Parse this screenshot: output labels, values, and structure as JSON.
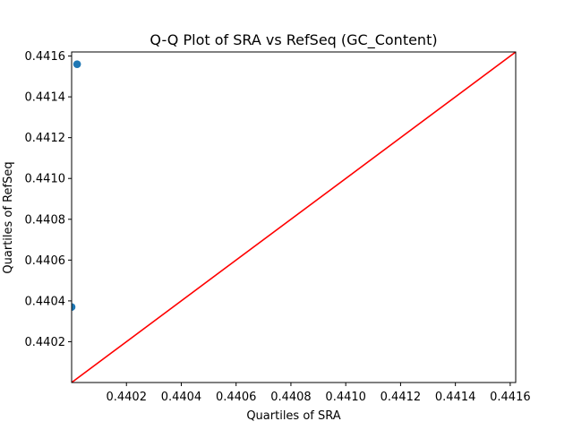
{
  "chart_data": {
    "type": "scatter",
    "title": "Q-Q Plot of SRA vs RefSeq (GC_Content)",
    "xlabel": "Quartiles of SRA",
    "ylabel": "Quartiles of RefSeq",
    "xlim": [
      0.44,
      0.44162
    ],
    "ylim": [
      0.44,
      0.44162
    ],
    "xticks": [
      0.4402,
      0.4404,
      0.4406,
      0.4408,
      0.441,
      0.4412,
      0.4414,
      0.4416
    ],
    "xtick_labels": [
      "0.4402",
      "0.4404",
      "0.4406",
      "0.4408",
      "0.4410",
      "0.4412",
      "0.4414",
      "0.4416"
    ],
    "yticks": [
      0.4402,
      0.4404,
      0.4406,
      0.4408,
      0.441,
      0.4412,
      0.4414,
      0.4416
    ],
    "ytick_labels": [
      "0.4402",
      "0.4404",
      "0.4406",
      "0.4408",
      "0.4410",
      "0.4412",
      "0.4414",
      "0.4416"
    ],
    "grid": false,
    "series": [
      {
        "type": "scatter",
        "color": "#1f77b4",
        "points": [
          {
            "x": 0.44,
            "y": 0.44037
          },
          {
            "x": 0.44002,
            "y": 0.44156
          }
        ]
      },
      {
        "type": "line",
        "color": "#ff0000",
        "points": [
          {
            "x": 0.44,
            "y": 0.44
          },
          {
            "x": 0.44162,
            "y": 0.44162
          }
        ]
      }
    ]
  }
}
